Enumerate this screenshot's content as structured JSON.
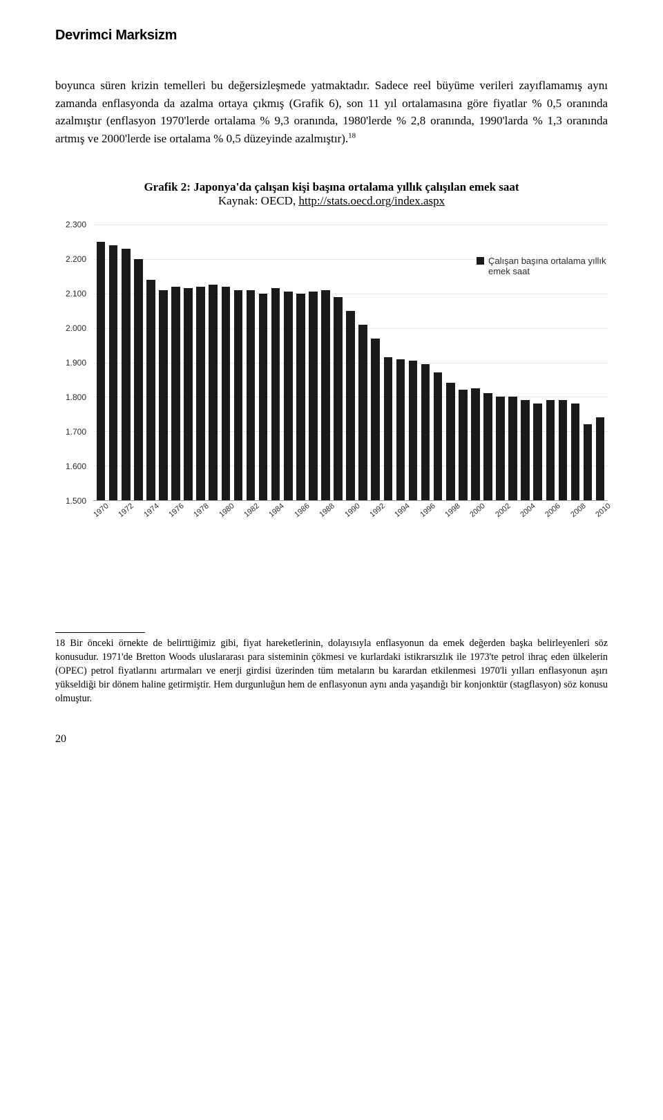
{
  "header": {
    "title": "Devrimci Marksizm"
  },
  "body": {
    "text": "boyunca süren krizin temelleri bu değersizleşmede yatmaktadır. Sadece reel büyüme verileri zayıflamamış aynı zamanda enflasyonda da azalma ortaya çıkmış (Grafik 6), son 11 yıl ortalamasına göre fiyatlar % 0,5 oranında azalmıştır (enflasyon 1970'lerde ortalama % 9,3 oranında, 1980'lerde % 2,8 oranında, 1990'larda % 1,3 oranında artmış ve 2000'lerde ise ortalama % 0,5 düzeyinde azalmıştır).",
    "sup": "18"
  },
  "chart": {
    "caption_bold": "Grafik 2: Japonya'da çalışan kişi başına ortalama yıllık çalışılan emek saat",
    "caption_plain": "Kaynak: OECD, ",
    "caption_link": "http://stats.oecd.org/index.aspx",
    "type": "bar",
    "legend_label": "Çalışan başına ortalama yıllık emek saat",
    "bar_color": "#1a1a1a",
    "background_color": "#ffffff",
    "grid_color": "#e6e6e6",
    "ylim": [
      1500,
      2300
    ],
    "yticks": [
      "2.300",
      "2.200",
      "2.100",
      "2.000",
      "1.900",
      "1.800",
      "1.700",
      "1.600",
      "1.500"
    ],
    "xticks": [
      "1970",
      "1972",
      "1974",
      "1976",
      "1978",
      "1980",
      "1982",
      "1984",
      "1986",
      "1988",
      "1990",
      "1992",
      "1994",
      "1996",
      "1998",
      "2000",
      "2002",
      "2004",
      "2006",
      "2008",
      "2010"
    ],
    "series": [
      {
        "year": 1970,
        "value": 2250
      },
      {
        "year": 1971,
        "value": 2240
      },
      {
        "year": 1972,
        "value": 2230
      },
      {
        "year": 1973,
        "value": 2200
      },
      {
        "year": 1974,
        "value": 2140
      },
      {
        "year": 1975,
        "value": 2110
      },
      {
        "year": 1976,
        "value": 2120
      },
      {
        "year": 1977,
        "value": 2115
      },
      {
        "year": 1978,
        "value": 2120
      },
      {
        "year": 1979,
        "value": 2125
      },
      {
        "year": 1980,
        "value": 2120
      },
      {
        "year": 1981,
        "value": 2110
      },
      {
        "year": 1982,
        "value": 2110
      },
      {
        "year": 1983,
        "value": 2100
      },
      {
        "year": 1984,
        "value": 2115
      },
      {
        "year": 1985,
        "value": 2105
      },
      {
        "year": 1986,
        "value": 2100
      },
      {
        "year": 1987,
        "value": 2105
      },
      {
        "year": 1988,
        "value": 2110
      },
      {
        "year": 1989,
        "value": 2090
      },
      {
        "year": 1990,
        "value": 2050
      },
      {
        "year": 1991,
        "value": 2010
      },
      {
        "year": 1992,
        "value": 1970
      },
      {
        "year": 1993,
        "value": 1915
      },
      {
        "year": 1994,
        "value": 1910
      },
      {
        "year": 1995,
        "value": 1905
      },
      {
        "year": 1996,
        "value": 1895
      },
      {
        "year": 1997,
        "value": 1870
      },
      {
        "year": 1998,
        "value": 1840
      },
      {
        "year": 1999,
        "value": 1820
      },
      {
        "year": 2000,
        "value": 1825
      },
      {
        "year": 2001,
        "value": 1810
      },
      {
        "year": 2002,
        "value": 1800
      },
      {
        "year": 2003,
        "value": 1800
      },
      {
        "year": 2004,
        "value": 1790
      },
      {
        "year": 2005,
        "value": 1780
      },
      {
        "year": 2006,
        "value": 1790
      },
      {
        "year": 2007,
        "value": 1790
      },
      {
        "year": 2008,
        "value": 1780
      },
      {
        "year": 2009,
        "value": 1720
      },
      {
        "year": 2010,
        "value": 1740
      }
    ]
  },
  "footnote": {
    "num": "18",
    "text": " Bir önceki örnekte de belirttiğimiz gibi, fiyat hareketlerinin, dolayısıyla enflasyonun da emek değerden başka belirleyenleri söz konusudur. 1971'de Bretton Woods uluslararası para sisteminin çökmesi ve kurlardaki istikrarsızlık ile 1973'te petrol ihraç eden ülkelerin (OPEC) petrol fiyatlarını artırmaları ve enerji girdisi üzerinden tüm metaların bu karardan etkilenmesi 1970'li yılları enflasyonun aşırı yükseldiği bir dönem haline getirmiştir. Hem durgunluğun hem de enflasyonun aynı anda yaşandığı bir konjonktür (stagflasyon) söz konusu olmuştur."
  },
  "page_number": "20"
}
